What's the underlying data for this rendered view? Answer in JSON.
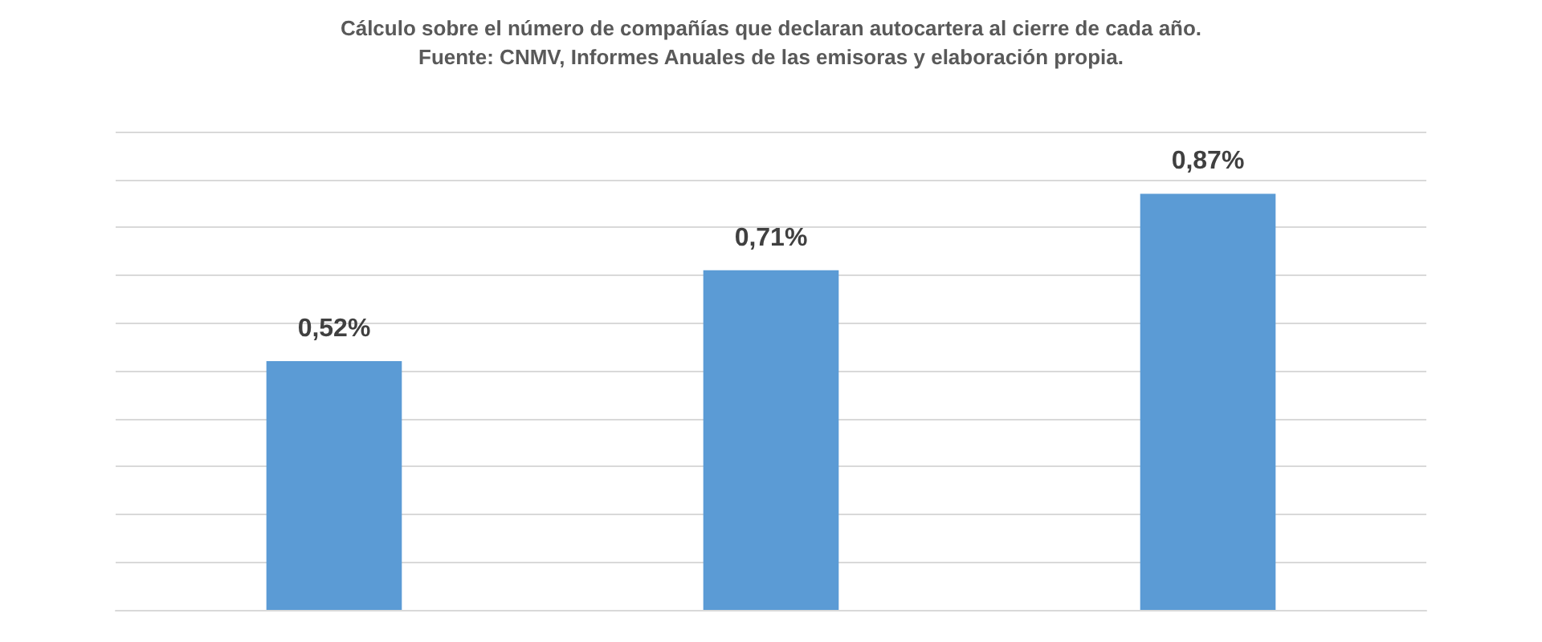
{
  "chart_data": {
    "type": "bar",
    "subtitle": "Cálculo sobre el número de compañías que declaran autocartera al cierre de cada año.",
    "annotations": [
      "Fuente: CNMV, Informes Anuales de las emisoras y elaboración propia."
    ],
    "categories": [
      null,
      null,
      null
    ],
    "values": [
      0.52,
      0.71,
      0.87
    ],
    "value_labels": [
      "0,52%",
      "0,71%",
      "0,87%"
    ],
    "color": "#5b9bd5",
    "ylim": [
      0,
      1
    ],
    "yticks": [
      {
        "value": 0,
        "label": null
      },
      {
        "value": 0.1,
        "label": null
      },
      {
        "value": 0.2,
        "label": null
      },
      {
        "value": 0.3,
        "label": null
      },
      {
        "value": 0.4,
        "label": null
      },
      {
        "value": 0.5,
        "label": null
      },
      {
        "value": 0.6,
        "label": null
      },
      {
        "value": 0.7,
        "label": null
      },
      {
        "value": 0.8,
        "label": null
      },
      {
        "value": 0.9,
        "label": null
      },
      {
        "value": 1,
        "label": null
      }
    ],
    "grid": "y"
  }
}
